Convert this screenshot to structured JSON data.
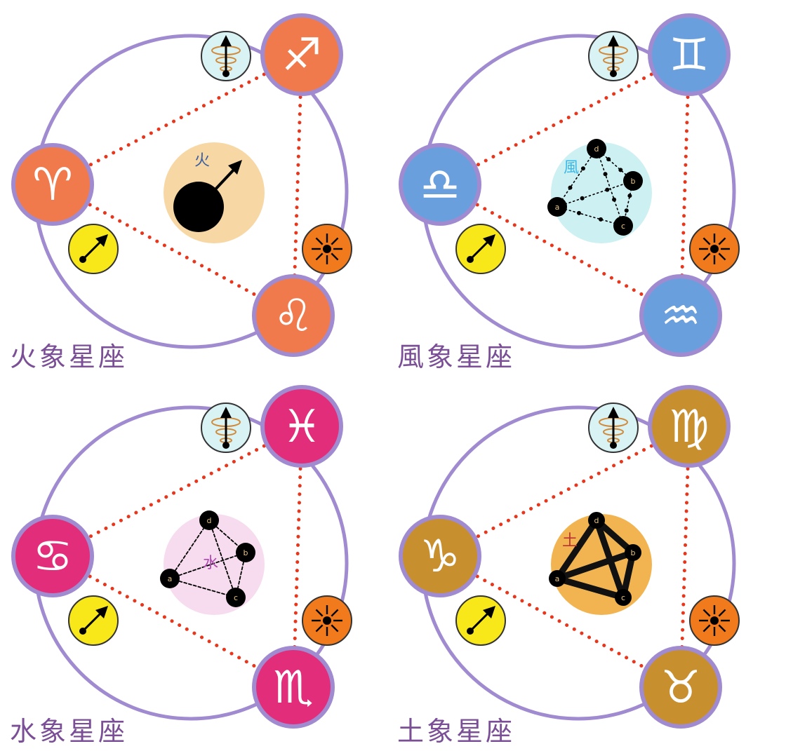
{
  "panels": [
    {
      "id": "fire",
      "title": "火象星座",
      "element_char": "火",
      "color": "#f07a4c",
      "signs": [
        "♐",
        "♈",
        "♌"
      ],
      "sign_names": [
        "sagittarius",
        "aries",
        "leo"
      ],
      "center_style": "mars",
      "center_bg": "#f7d7a4",
      "node_labels": []
    },
    {
      "id": "air",
      "title": "風象星座",
      "element_char": "風",
      "color": "#6a9fde",
      "signs": [
        "♊",
        "♎",
        "♒"
      ],
      "sign_names": [
        "gemini",
        "libra",
        "aquarius"
      ],
      "center_style": "dotted-network",
      "center_bg": "#cdf0f2",
      "node_labels": [
        "a",
        "b",
        "c",
        "d"
      ]
    },
    {
      "id": "water",
      "title": "水象星座",
      "element_char": "水",
      "color": "#e22d7b",
      "signs": [
        "♓",
        "♋",
        "♏"
      ],
      "sign_names": [
        "pisces",
        "cancer",
        "scorpio"
      ],
      "center_style": "dashed-network",
      "center_bg": "#f7dcef",
      "node_labels": [
        "a",
        "b",
        "c",
        "d"
      ]
    },
    {
      "id": "earth",
      "title": "土象星座",
      "element_char": "土",
      "color": "#c78f2e",
      "signs": [
        "♍",
        "♑",
        "♉"
      ],
      "sign_names": [
        "virgo",
        "capricorn",
        "taurus"
      ],
      "center_style": "solid-network",
      "center_bg": "#f2b451",
      "node_labels": [
        "a",
        "b",
        "c",
        "d"
      ]
    }
  ],
  "icons": {
    "top": "spiral-arrow-icon",
    "left": "diagonal-arrow-icon",
    "right": "radiating-sun-icon"
  },
  "colors": {
    "ring": "#a08bd1",
    "dots": "#e8361c",
    "label": "#7b4f96",
    "top_icon_bg": "#d9f3f5",
    "left_icon_bg": "#f8e81a",
    "right_icon_bg": "#f07a1c"
  }
}
